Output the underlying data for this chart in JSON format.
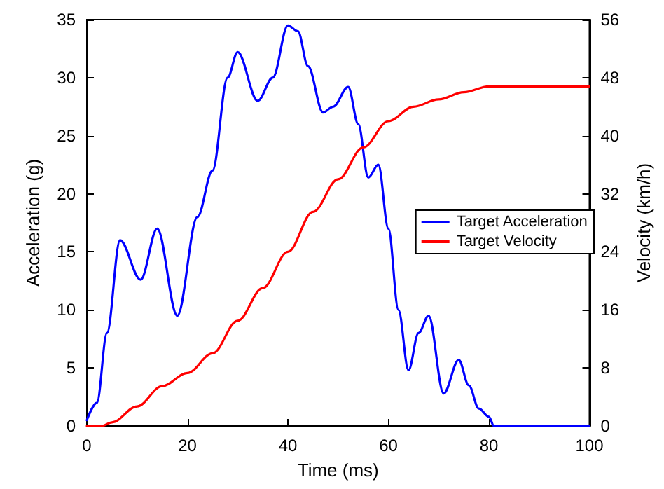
{
  "chart_data": {
    "type": "line",
    "xlabel": "Time (ms)",
    "ylabel": "Acceleration (g)",
    "y2label": "Velocity (km/h)",
    "xlim": [
      0,
      100
    ],
    "xticks": [
      0,
      20,
      40,
      60,
      80,
      100
    ],
    "ylim": [
      0,
      35
    ],
    "yticks": [
      0,
      5,
      10,
      15,
      20,
      25,
      30,
      35
    ],
    "y2lim": [
      0,
      56
    ],
    "y2ticks": [
      0,
      8,
      16,
      24,
      32,
      40,
      48,
      56
    ],
    "legend": "right",
    "grid": false,
    "marker": "none",
    "line_style": "solid",
    "series": [
      {
        "name": "Target Acceleration",
        "color": "#0000ff",
        "x": [
          0,
          2,
          4,
          6.6,
          10.7,
          14,
          18,
          22,
          25,
          28,
          30,
          34,
          37,
          40,
          42,
          44,
          47,
          49,
          52,
          54,
          56,
          58,
          60,
          62,
          64,
          66,
          68,
          71,
          74,
          76,
          78,
          80,
          81,
          100
        ],
        "values": [
          0.5,
          2,
          8,
          16,
          12.6,
          17,
          9.5,
          18,
          22,
          30,
          32.2,
          28,
          30,
          34.5,
          34,
          31,
          27,
          27.5,
          29.2,
          26,
          21.4,
          22.5,
          17,
          10,
          4.8,
          8,
          9.5,
          2.8,
          5.7,
          3.5,
          1.5,
          0.8,
          0,
          0
        ]
      },
      {
        "name": "Target Velocity",
        "color": "#ff0000",
        "axis": "y2",
        "x": [
          0,
          3,
          5,
          10,
          15,
          20,
          25,
          30,
          35,
          40,
          45,
          50,
          55,
          60,
          65,
          70,
          75,
          80,
          100
        ],
        "values": [
          0,
          0,
          0.5,
          2.7,
          5.5,
          7.3,
          10,
          14.5,
          19,
          24,
          29.5,
          34,
          38.4,
          42,
          44,
          45,
          46,
          46.8,
          46.8
        ]
      }
    ]
  }
}
